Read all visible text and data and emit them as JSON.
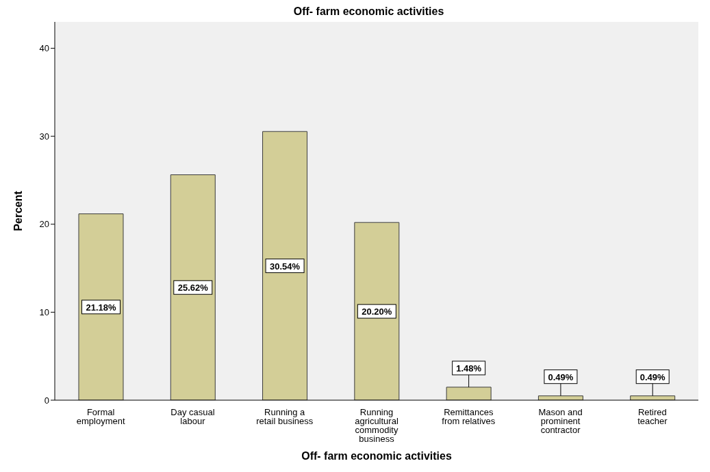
{
  "chart_data": {
    "type": "bar",
    "title": "Off- farm economic activities",
    "xlabel": "Off- farm economic activities",
    "ylabel": "Percent",
    "categories": [
      "Formal\nemployment",
      "Day casual\nlabour",
      "Running a\nretail business",
      "Running\nagricultural\ncommodity\nbusiness",
      "Remittances\nfrom relatives",
      "Mason and\nprominent\ncontractor",
      "Retired\nteacher"
    ],
    "values": [
      21.18,
      25.62,
      30.54,
      20.2,
      1.48,
      0.49,
      0.49
    ],
    "value_labels": [
      "21.18%",
      "25.62%",
      "30.54%",
      "20.20%",
      "1.48%",
      "0.49%",
      "0.49%"
    ],
    "color": "#d3ce97",
    "ylim": [
      0,
      43
    ],
    "yticks": [
      0,
      10,
      20,
      30,
      40
    ],
    "grid": false,
    "legend": false
  }
}
